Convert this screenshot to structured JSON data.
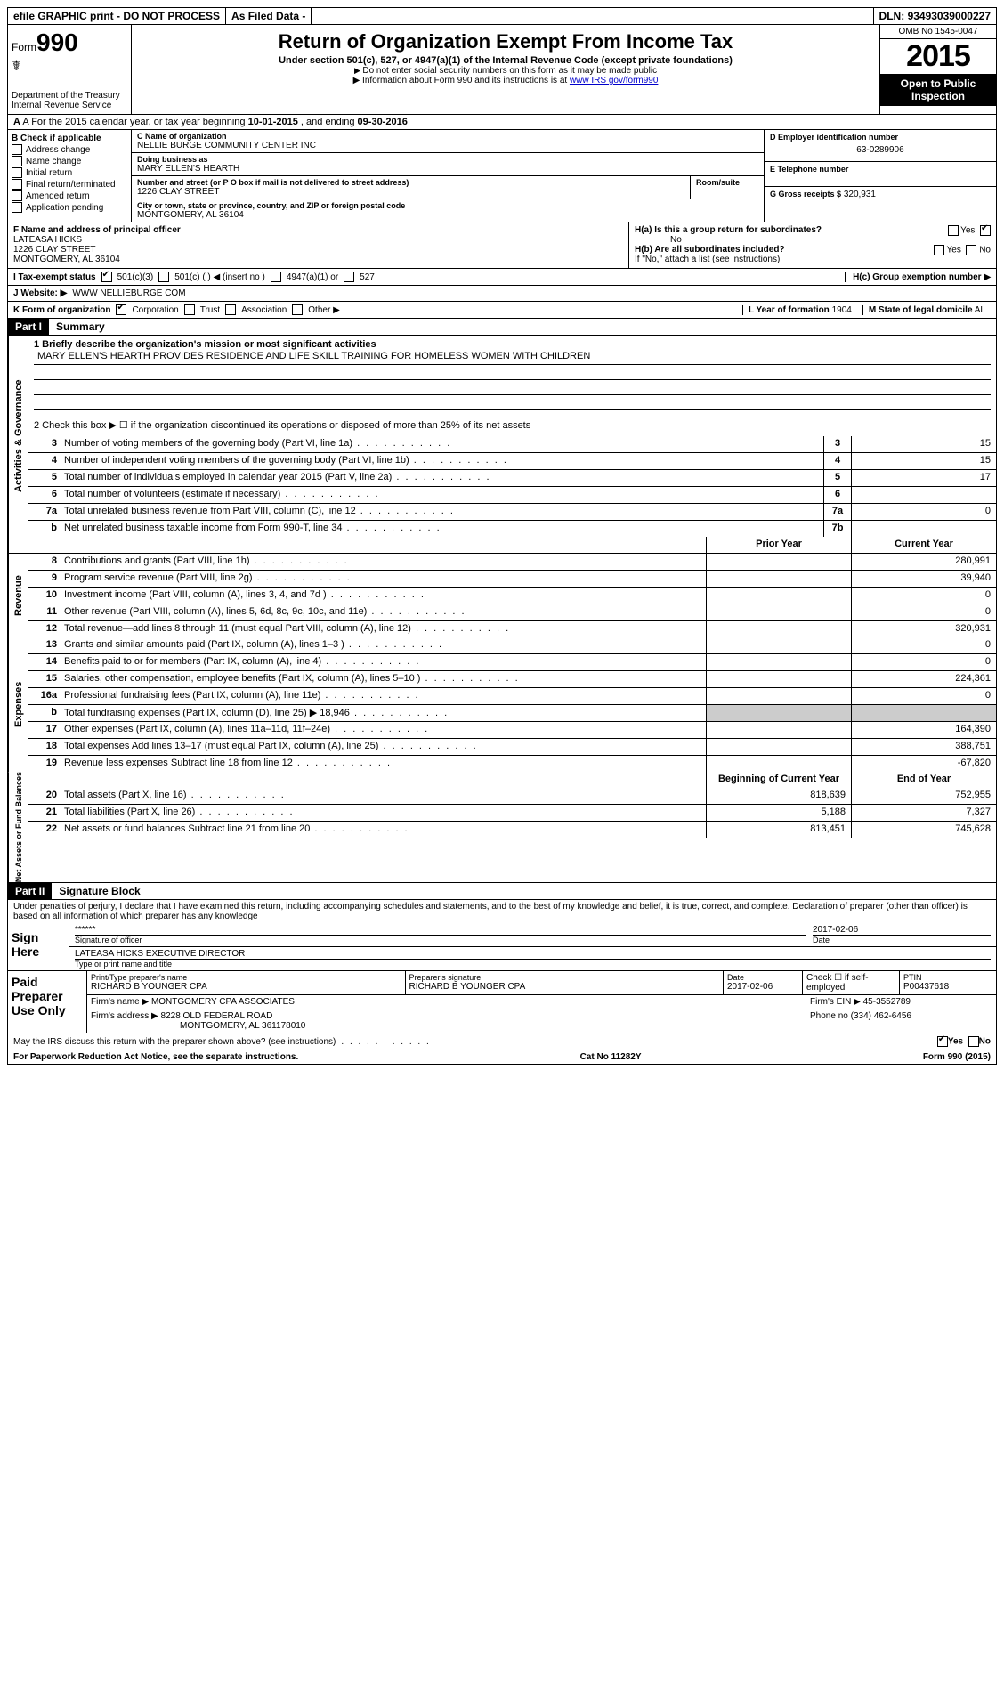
{
  "topbar": {
    "efile": "efile GRAPHIC print - DO NOT PROCESS",
    "asfiled": "As Filed Data -",
    "dln_lbl": "DLN:",
    "dln": "93493039000227"
  },
  "header": {
    "form_prefix": "Form",
    "form_no": "990",
    "dept1": "Department of the Treasury",
    "dept2": "Internal Revenue Service",
    "title": "Return of Organization Exempt From Income Tax",
    "subtitle": "Under section 501(c), 527, or 4947(a)(1) of the Internal Revenue Code (except private foundations)",
    "note1": "Do not enter social security numbers on this form as it may be made public",
    "note2_pre": "Information about Form 990 and its instructions is at ",
    "note2_link": "www IRS gov/form990",
    "omb": "OMB No 1545-0047",
    "year": "2015",
    "open": "Open to Public Inspection"
  },
  "rowA": {
    "text_pre": "A  For the 2015 calendar year, or tax year beginning ",
    "begin": "10-01-2015",
    "mid": " , and ending ",
    "end": "09-30-2016"
  },
  "colB": {
    "hdr": "B Check if applicable",
    "opts": [
      "Address change",
      "Name change",
      "Initial return",
      "Final return/terminated",
      "Amended return",
      "Application pending"
    ]
  },
  "colC": {
    "name_lbl": "C Name of organization",
    "name": "NELLIE BURGE COMMUNITY CENTER INC",
    "dba_lbl": "Doing business as",
    "dba": "MARY ELLEN'S HEARTH",
    "street_lbl": "Number and street (or P O box if mail is not delivered to street address)",
    "room_lbl": "Room/suite",
    "street": "1226 CLAY STREET",
    "city_lbl": "City or town, state or province, country, and ZIP or foreign postal code",
    "city": "MONTGOMERY, AL 36104"
  },
  "colD": {
    "ein_lbl": "D Employer identification number",
    "ein": "63-0289906",
    "tel_lbl": "E Telephone number",
    "tel": "",
    "gross_lbl": "G Gross receipts $",
    "gross": "320,931"
  },
  "F": {
    "lbl": "F Name and address of principal officer",
    "name": "LATEASA HICKS",
    "street": "1226 CLAY STREET",
    "city": "MONTGOMERY, AL 36104"
  },
  "H": {
    "a_lbl": "H(a)  Is this a group return for subordinates?",
    "a_no": "No",
    "b_lbl": "H(b) Are all subordinates included?",
    "b_note": "If \"No,\" attach a list (see instructions)",
    "c_lbl": "H(c)  Group exemption number ▶",
    "yes": "Yes",
    "no": "No"
  },
  "I": {
    "lbl": "I  Tax-exempt status",
    "o1": "501(c)(3)",
    "o2": "501(c) (  ) ◀ (insert no )",
    "o3": "4947(a)(1) or",
    "o4": "527"
  },
  "J": {
    "lbl": "J  Website: ▶",
    "val": "WWW NELLIEBURGE COM"
  },
  "K": {
    "lbl": "K Form of organization",
    "o1": "Corporation",
    "o2": "Trust",
    "o3": "Association",
    "o4": "Other ▶"
  },
  "L": {
    "lbl": "L Year of formation",
    "val": "1904"
  },
  "M": {
    "lbl": "M State of legal domicile",
    "val": "AL"
  },
  "partI": {
    "lbl": "Part I",
    "title": "Summary"
  },
  "summary": {
    "sec1_lbl": "Activities & Governance",
    "l1": "1 Briefly describe the organization's mission or most significant activities",
    "mission": "MARY ELLEN'S HEARTH PROVIDES RESIDENCE AND LIFE SKILL TRAINING FOR HOMELESS WOMEN WITH CHILDREN",
    "l2": "2  Check this box ▶ ☐ if the organization discontinued its operations or disposed of more than 25% of its net assets",
    "rows_gov": [
      {
        "n": "3",
        "d": "Number of voting members of the governing body (Part VI, line 1a)",
        "box": "3",
        "v": "15"
      },
      {
        "n": "4",
        "d": "Number of independent voting members of the governing body (Part VI, line 1b)",
        "box": "4",
        "v": "15"
      },
      {
        "n": "5",
        "d": "Total number of individuals employed in calendar year 2015 (Part V, line 2a)",
        "box": "5",
        "v": "17"
      },
      {
        "n": "6",
        "d": "Total number of volunteers (estimate if necessary)",
        "box": "6",
        "v": ""
      },
      {
        "n": "7a",
        "d": "Total unrelated business revenue from Part VIII, column (C), line 12",
        "box": "7a",
        "v": "0"
      },
      {
        "n": "b",
        "d": "Net unrelated business taxable income from Form 990-T, line 34",
        "box": "7b",
        "v": ""
      }
    ],
    "hdr_prior": "Prior Year",
    "hdr_curr": "Current Year",
    "sec2_lbl": "Revenue",
    "rows_rev": [
      {
        "n": "8",
        "d": "Contributions and grants (Part VIII, line 1h)",
        "p": "",
        "c": "280,991"
      },
      {
        "n": "9",
        "d": "Program service revenue (Part VIII, line 2g)",
        "p": "",
        "c": "39,940"
      },
      {
        "n": "10",
        "d": "Investment income (Part VIII, column (A), lines 3, 4, and 7d )",
        "p": "",
        "c": "0"
      },
      {
        "n": "11",
        "d": "Other revenue (Part VIII, column (A), lines 5, 6d, 8c, 9c, 10c, and 11e)",
        "p": "",
        "c": "0"
      },
      {
        "n": "12",
        "d": "Total revenue—add lines 8 through 11 (must equal Part VIII, column (A), line 12)",
        "p": "",
        "c": "320,931"
      }
    ],
    "sec3_lbl": "Expenses",
    "rows_exp": [
      {
        "n": "13",
        "d": "Grants and similar amounts paid (Part IX, column (A), lines 1–3 )",
        "p": "",
        "c": "0"
      },
      {
        "n": "14",
        "d": "Benefits paid to or for members (Part IX, column (A), line 4)",
        "p": "",
        "c": "0"
      },
      {
        "n": "15",
        "d": "Salaries, other compensation, employee benefits (Part IX, column (A), lines 5–10 )",
        "p": "",
        "c": "224,361"
      },
      {
        "n": "16a",
        "d": "Professional fundraising fees (Part IX, column (A), line 11e)",
        "p": "",
        "c": "0"
      },
      {
        "n": "b",
        "d": "Total fundraising expenses (Part IX, column (D), line 25) ▶ 18,946",
        "p": "—",
        "c": "—"
      },
      {
        "n": "17",
        "d": "Other expenses (Part IX, column (A), lines 11a–11d, 11f–24e)",
        "p": "",
        "c": "164,390"
      },
      {
        "n": "18",
        "d": "Total expenses Add lines 13–17 (must equal Part IX, column (A), line 25)",
        "p": "",
        "c": "388,751"
      },
      {
        "n": "19",
        "d": "Revenue less expenses Subtract line 18 from line 12",
        "p": "",
        "c": "-67,820"
      }
    ],
    "sec4_lbl": "Net Assets or Fund Balances",
    "hdr_begin": "Beginning of Current Year",
    "hdr_end": "End of Year",
    "rows_net": [
      {
        "n": "20",
        "d": "Total assets (Part X, line 16)",
        "p": "818,639",
        "c": "752,955"
      },
      {
        "n": "21",
        "d": "Total liabilities (Part X, line 26)",
        "p": "5,188",
        "c": "7,327"
      },
      {
        "n": "22",
        "d": "Net assets or fund balances Subtract line 21 from line 20",
        "p": "813,451",
        "c": "745,628"
      }
    ]
  },
  "partII": {
    "lbl": "Part II",
    "title": "Signature Block"
  },
  "perjury": "Under penalties of perjury, I declare that I have examined this return, including accompanying schedules and statements, and to the best of my knowledge and belief, it is true, correct, and complete. Declaration of preparer (other than officer) is based on all information of which preparer has any knowledge",
  "sign": {
    "lbl": "Sign Here",
    "stars": "******",
    "sig_lbl": "Signature of officer",
    "date": "2017-02-06",
    "date_lbl": "Date",
    "name": "LATEASA HICKS EXECUTIVE DIRECTOR",
    "name_lbl": "Type or print name and title"
  },
  "prep": {
    "lbl": "Paid Preparer Use Only",
    "pname_lbl": "Print/Type preparer's name",
    "pname": "RICHARD B YOUNGER CPA",
    "psig_lbl": "Preparer's signature",
    "psig": "RICHARD B YOUNGER CPA",
    "pdate_lbl": "Date",
    "pdate": "2017-02-06",
    "check_lbl": "Check ☐ if self-employed",
    "ptin_lbl": "PTIN",
    "ptin": "P00437618",
    "firm_lbl": "Firm's name  ▶",
    "firm": "MONTGOMERY CPA ASSOCIATES",
    "fein_lbl": "Firm's EIN ▶",
    "fein": "45-3552789",
    "addr_lbl": "Firm's address ▶",
    "addr1": "8228 OLD FEDERAL ROAD",
    "addr2": "MONTGOMERY, AL 361178010",
    "phone_lbl": "Phone no",
    "phone": "(334) 462-6456"
  },
  "discuss": {
    "q": "May the IRS discuss this return with the preparer shown above? (see instructions)",
    "yes": "Yes",
    "no": "No"
  },
  "footer": {
    "left": "For Paperwork Reduction Act Notice, see the separate instructions.",
    "mid": "Cat No 11282Y",
    "right": "Form 990 (2015)"
  }
}
